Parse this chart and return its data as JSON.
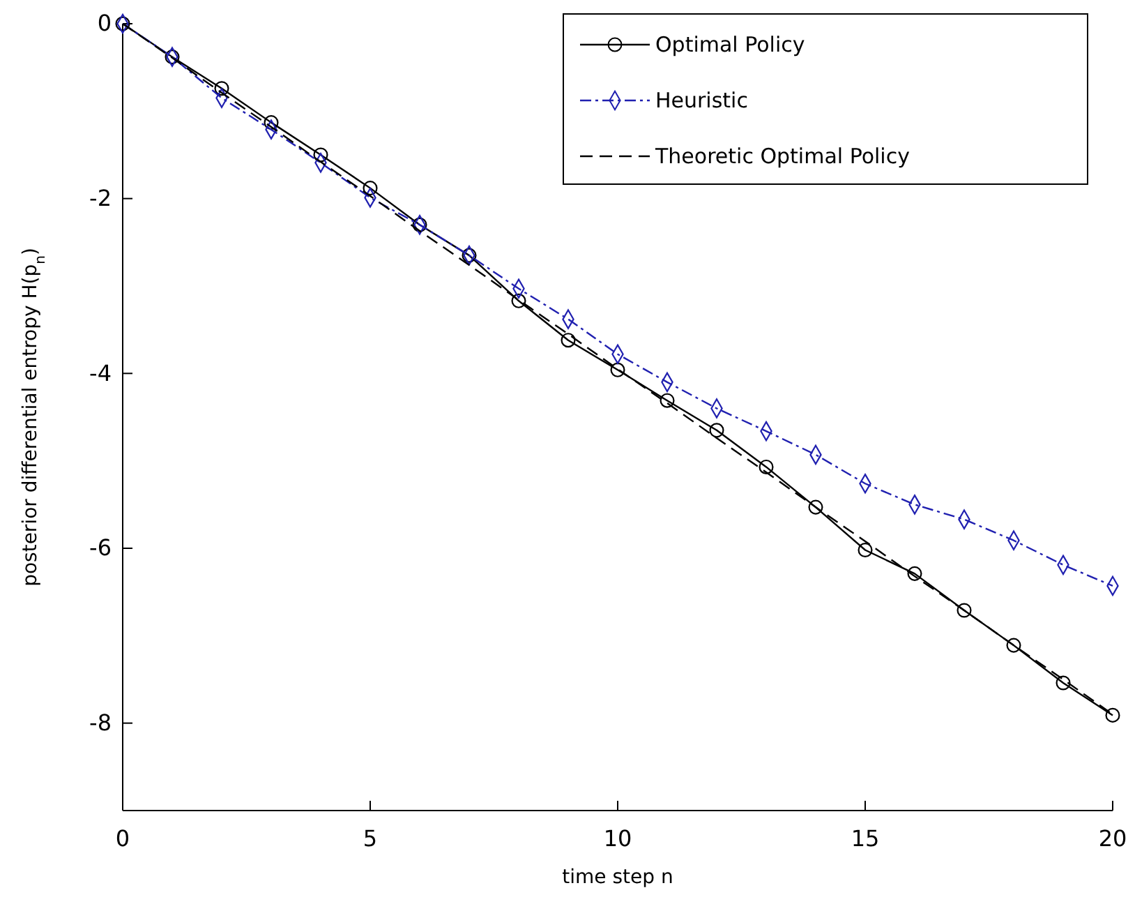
{
  "chart_data": {
    "type": "line",
    "xlabel": "time step n",
    "ylabel": "posterior differential entropy H(p$_{n}$)",
    "x": [
      0,
      1,
      2,
      3,
      4,
      5,
      6,
      7,
      8,
      9,
      10,
      11,
      12,
      13,
      14,
      15,
      16,
      17,
      18,
      19,
      20
    ],
    "xlim": [
      0,
      20
    ],
    "xticks": [
      0,
      5,
      10,
      15,
      20
    ],
    "ylim": [
      -9,
      0
    ],
    "yticks": [
      -8,
      -6,
      -4,
      -2,
      0
    ],
    "grid": false,
    "legend": "top right",
    "series": [
      {
        "name": "Optimal Policy",
        "color": "#000000",
        "marker": "circle",
        "line_style": "solid",
        "values": [
          0,
          -0.38,
          -0.74,
          -1.13,
          -1.5,
          -1.88,
          -2.3,
          -2.65,
          -3.17,
          -3.62,
          -3.96,
          -4.31,
          -4.65,
          -5.07,
          -5.53,
          -6.02,
          -6.29,
          -6.71,
          -7.11,
          -7.54,
          -7.91
        ]
      },
      {
        "name": "Heuristic",
        "color": "#2020b0",
        "marker": "diamond",
        "line_style": "dashdot",
        "values": [
          0,
          -0.38,
          -0.85,
          -1.21,
          -1.59,
          -1.99,
          -2.3,
          -2.65,
          -3.03,
          -3.38,
          -3.78,
          -4.1,
          -4.4,
          -4.66,
          -4.93,
          -5.26,
          -5.5,
          -5.67,
          -5.91,
          -6.19,
          -6.43
        ]
      },
      {
        "name": "Theoretic Optimal Policy",
        "color": "#000000",
        "marker": "none",
        "line_style": "dashed",
        "values": [
          0,
          -0.39,
          -0.79,
          -1.18,
          -1.58,
          -1.97,
          -2.37,
          -2.76,
          -3.16,
          -3.55,
          -3.95,
          -4.34,
          -4.74,
          -5.13,
          -5.53,
          -5.92,
          -6.32,
          -6.71,
          -7.11,
          -7.5,
          -7.9
        ]
      }
    ]
  }
}
